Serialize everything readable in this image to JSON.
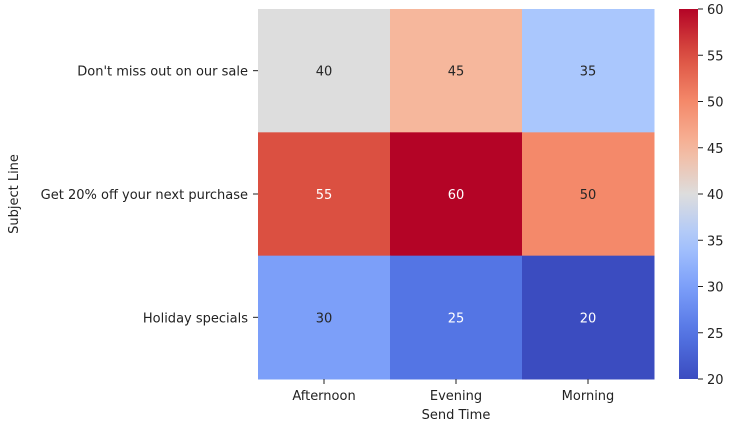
{
  "chart_data": {
    "type": "heatmap",
    "title": "",
    "xlabel": "Send Time",
    "ylabel": "Subject Line",
    "x_categories": [
      "Afternoon",
      "Evening",
      "Morning"
    ],
    "y_categories": [
      "Don't miss out on our sale",
      "Get 20% off your next purchase",
      "Holiday specials"
    ],
    "values": [
      [
        40,
        45,
        35
      ],
      [
        55,
        60,
        50
      ],
      [
        30,
        25,
        20
      ]
    ],
    "annotations": true,
    "colormap": "coolwarm",
    "colorbar": {
      "range": [
        20,
        60
      ],
      "ticks": [
        20,
        25,
        30,
        35,
        40,
        45,
        50,
        55,
        60
      ]
    }
  }
}
